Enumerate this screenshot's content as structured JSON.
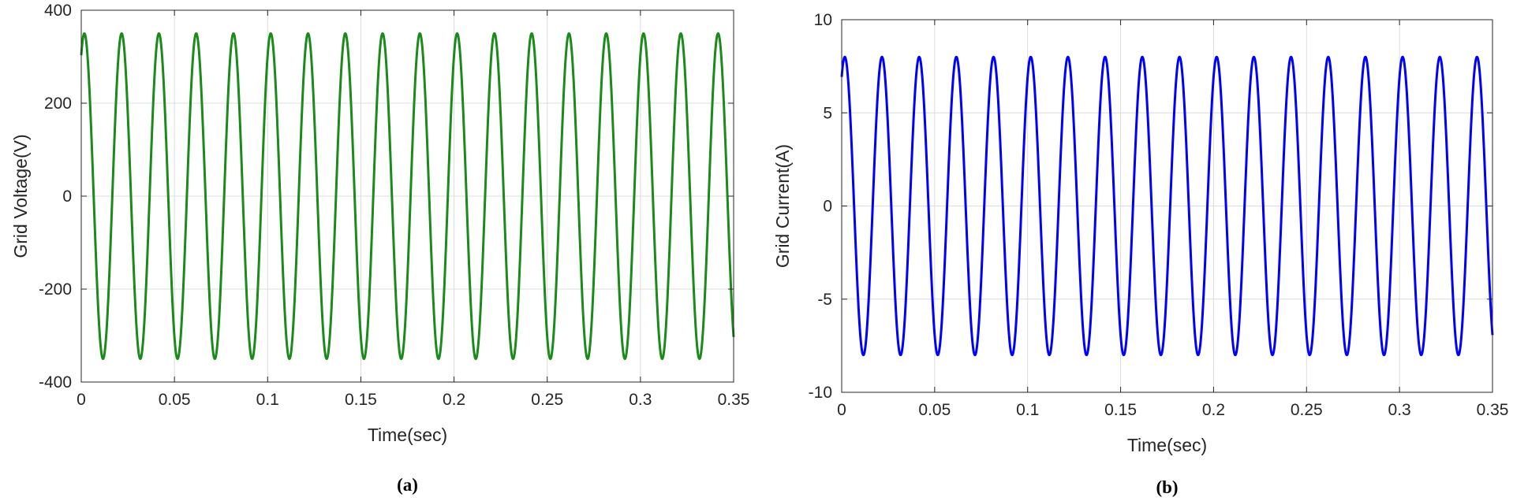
{
  "chart_data": [
    {
      "type": "line",
      "panel_label": "(a)",
      "xlabel": "Time(sec)",
      "ylabel": "Grid Voltage(V)",
      "xlim": [
        0,
        0.35
      ],
      "ylim": [
        -400,
        400
      ],
      "x_ticks": [
        0,
        0.05,
        0.1,
        0.15,
        0.2,
        0.25,
        0.3,
        0.35
      ],
      "x_tick_labels": [
        "0",
        "0.05",
        "0.1",
        "0.15",
        "0.2",
        "0.25",
        "0.3",
        "0.35"
      ],
      "y_ticks": [
        400,
        200,
        0,
        -200,
        -400
      ],
      "y_tick_labels": [
        "400",
        "200",
        "0",
        "-200",
        "-400"
      ],
      "grid": true,
      "series": [
        {
          "color": "#1a8a1a",
          "waveform": "sine",
          "amplitude": 350,
          "frequency_hz": 50,
          "phase_deg": 60
        }
      ]
    },
    {
      "type": "line",
      "panel_label": "(b)",
      "xlabel": "Time(sec)",
      "ylabel": "Grid Current(A)",
      "xlim": [
        0,
        0.35
      ],
      "ylim": [
        -10,
        10
      ],
      "x_ticks": [
        0,
        0.05,
        0.1,
        0.15,
        0.2,
        0.25,
        0.3,
        0.35
      ],
      "x_tick_labels": [
        "0",
        "0.05",
        "0.1",
        "0.15",
        "0.2",
        "0.25",
        "0.3",
        "0.35"
      ],
      "y_ticks": [
        10,
        5,
        0,
        -5,
        -10
      ],
      "y_tick_labels": [
        "10",
        "5",
        "0",
        "-5",
        "-10"
      ],
      "grid": true,
      "series": [
        {
          "color": "#0000ff",
          "waveform": "sine",
          "amplitude": 8,
          "frequency_hz": 50,
          "phase_deg": 60
        }
      ]
    }
  ]
}
